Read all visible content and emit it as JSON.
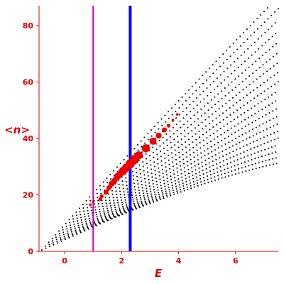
{
  "chart_data": {
    "type": "scatter",
    "title": "",
    "xlabel": "E",
    "ylabel": "<n>",
    "xlim": [
      -0.9,
      7.5
    ],
    "ylim": [
      0,
      87
    ],
    "grid": false,
    "axis_color": "#e00000",
    "x_ticks": [
      0,
      2,
      4,
      6
    ],
    "x_tick_labels": [
      "0",
      "2",
      "4",
      "6"
    ],
    "y_ticks": [
      0,
      20,
      40,
      60,
      80
    ],
    "y_tick_labels": [
      "0",
      "20",
      "40",
      "60",
      "80"
    ],
    "vertical_lines": [
      {
        "x": 1.0,
        "color": "#cc00cc",
        "width": "thin"
      },
      {
        "x": 2.3,
        "color": "#0000ff",
        "width": "thick"
      }
    ],
    "background_points": {
      "color": "#000000",
      "description": "dense fan of small black points (eigenstates) spreading upward from E≈-0.8",
      "fan_origin": [
        -0.8,
        0.5
      ],
      "branches": 20
    },
    "series": [
      {
        "color": "#ee0000",
        "points": [
          {
            "x": 0.9,
            "y": 16.5,
            "w": 1
          },
          {
            "x": 1.0,
            "y": 17.5,
            "w": 1
          },
          {
            "x": 1.25,
            "y": 18.5,
            "w": 2
          },
          {
            "x": 1.3,
            "y": 19.5,
            "w": 2
          },
          {
            "x": 1.45,
            "y": 21.0,
            "w": 3
          },
          {
            "x": 1.55,
            "y": 22.5,
            "w": 3
          },
          {
            "x": 1.65,
            "y": 24.0,
            "w": 4
          },
          {
            "x": 1.75,
            "y": 25.0,
            "w": 4
          },
          {
            "x": 1.85,
            "y": 26.5,
            "w": 5
          },
          {
            "x": 1.95,
            "y": 27.5,
            "w": 5
          },
          {
            "x": 2.05,
            "y": 28.5,
            "w": 6
          },
          {
            "x": 2.15,
            "y": 29.5,
            "w": 6
          },
          {
            "x": 2.3,
            "y": 31.0,
            "w": 7
          },
          {
            "x": 2.45,
            "y": 32.5,
            "w": 7
          },
          {
            "x": 2.6,
            "y": 34.0,
            "w": 6
          },
          {
            "x": 2.85,
            "y": 36.5,
            "w": 6
          },
          {
            "x": 3.1,
            "y": 39.0,
            "w": 5
          },
          {
            "x": 3.3,
            "y": 41.0,
            "w": 4
          },
          {
            "x": 3.5,
            "y": 43.0,
            "w": 3
          },
          {
            "x": 3.65,
            "y": 44.5,
            "w": 2
          },
          {
            "x": 3.8,
            "y": 46.5,
            "w": 1
          },
          {
            "x": 3.95,
            "y": 48.5,
            "w": 1
          }
        ]
      }
    ]
  }
}
